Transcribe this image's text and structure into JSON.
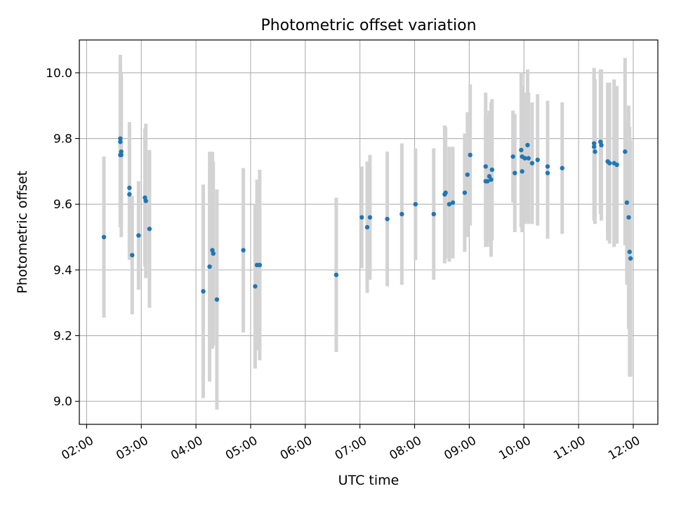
{
  "chart_data": {
    "type": "scatter",
    "title": "Photometric offset variation",
    "xlabel": "UTC time",
    "ylabel": "Photometric offset",
    "xlim": [
      "01:52",
      "12:27"
    ],
    "ylim": [
      8.93,
      10.1
    ],
    "x_ticks": [
      "02:00",
      "03:00",
      "04:00",
      "05:00",
      "06:00",
      "07:00",
      "08:00",
      "09:00",
      "10:00",
      "11:00",
      "12:00"
    ],
    "y_ticks": [
      "9.0",
      "9.2",
      "9.4",
      "9.6",
      "9.8",
      "10.0"
    ],
    "grid": true,
    "colors": {
      "marker": "#1f77b4",
      "errorbar": "#d3d3d3",
      "grid": "#b0b0b0"
    },
    "series": [
      {
        "x": [
          "02:19",
          "02:37",
          "02:37",
          "02:37",
          "02:38",
          "02:38",
          "02:47",
          "02:47",
          "02:50",
          "02:57",
          "03:04",
          "03:05",
          "03:09",
          "04:08",
          "04:15",
          "04:18",
          "04:19",
          "04:23",
          "04:52",
          "05:05",
          "05:07",
          "05:10",
          "06:34",
          "07:02",
          "07:08",
          "07:11",
          "07:30",
          "07:46",
          "08:01",
          "08:21",
          "08:33",
          "08:34",
          "08:38",
          "08:42",
          "08:55",
          "08:58",
          "09:01",
          "09:18",
          "09:18",
          "09:20",
          "09:22",
          "09:24",
          "09:25",
          "09:48",
          "09:50",
          "09:57",
          "09:58",
          "09:58",
          "10:01",
          "10:04",
          "10:05",
          "10:09",
          "10:15",
          "10:26",
          "10:26",
          "10:42",
          "11:17",
          "11:17",
          "11:18",
          "11:24",
          "11:25",
          "11:32",
          "11:32",
          "11:34",
          "11:39",
          "11:42",
          "11:51",
          "11:53",
          "11:55",
          "11:56",
          "11:57"
        ],
        "y": [
          9.5,
          9.8,
          9.79,
          9.75,
          9.76,
          9.75,
          9.65,
          9.63,
          9.445,
          9.505,
          9.62,
          9.61,
          9.525,
          9.335,
          9.41,
          9.46,
          9.45,
          9.31,
          9.46,
          9.35,
          9.415,
          9.415,
          9.385,
          9.56,
          9.53,
          9.56,
          9.555,
          9.57,
          9.6,
          9.57,
          9.63,
          9.635,
          9.6,
          9.605,
          9.635,
          9.69,
          9.75,
          9.715,
          9.67,
          9.67,
          9.685,
          9.675,
          9.705,
          9.745,
          9.695,
          9.765,
          9.7,
          9.745,
          9.74,
          9.78,
          9.74,
          9.725,
          9.735,
          9.715,
          9.695,
          9.71,
          9.785,
          9.775,
          9.76,
          9.79,
          9.78,
          9.73,
          9.73,
          9.725,
          9.725,
          9.72,
          9.76,
          9.605,
          9.56,
          9.455,
          9.435
        ],
        "err": [
          0.245,
          0.255,
          0.23,
          0.22,
          0.23,
          0.25,
          0.2,
          0.2,
          0.18,
          0.165,
          0.21,
          0.235,
          0.24,
          0.325,
          0.35,
          0.3,
          0.28,
          0.335,
          0.25,
          0.25,
          0.26,
          0.29,
          0.235,
          0.155,
          0.2,
          0.19,
          0.205,
          0.215,
          0.17,
          0.2,
          0.21,
          0.2,
          0.175,
          0.17,
          0.18,
          0.19,
          0.215,
          0.225,
          0.2,
          0.2,
          0.2,
          0.235,
          0.215,
          0.14,
          0.18,
          0.235,
          0.185,
          0.215,
          0.2,
          0.23,
          0.2,
          0.185,
          0.2,
          0.2,
          0.2,
          0.2,
          0.23,
          0.225,
          0.22,
          0.22,
          0.23,
          0.22,
          0.24,
          0.245,
          0.255,
          0.24,
          0.285,
          0.25,
          0.34,
          0.38,
          0.36
        ]
      }
    ]
  }
}
